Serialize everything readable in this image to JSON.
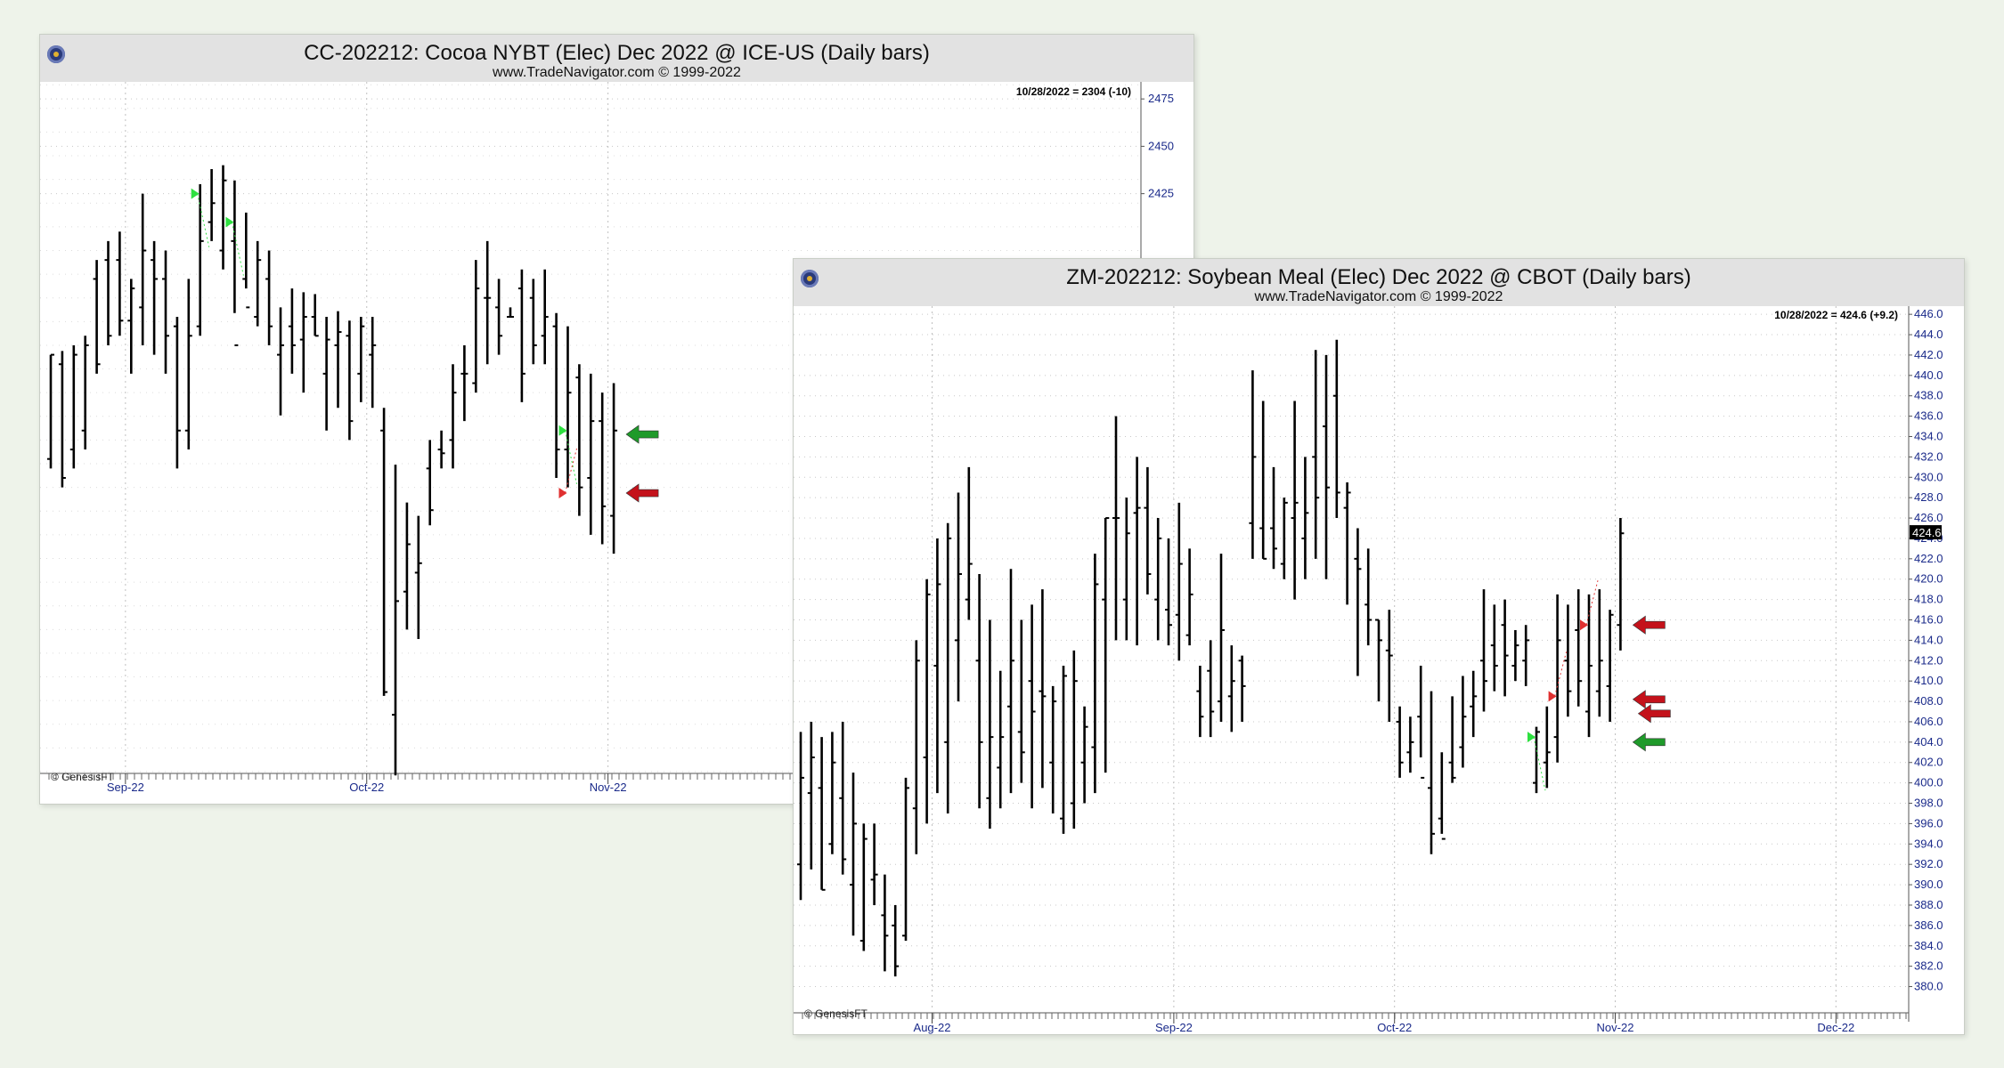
{
  "colors": {
    "background": "#eef3ea",
    "bar": "#000000",
    "axis_text": "#1a2a8a",
    "up_arrow": "#1f9a2a",
    "down_arrow": "#c4121b",
    "up_marker": "#2ee040",
    "down_marker": "#e03030"
  },
  "chart_data": [
    {
      "type": "bar",
      "title": "CC-202212:  Cocoa NYBT (Elec) Dec 2022 @ ICE-US  (Daily bars)",
      "subtitle": "www.TradeNavigator.com © 1999-2022",
      "readout": "10/28/2022 = 2304 (-10)",
      "credit": "© GenesisFT",
      "y_ticks": [
        "2475",
        "2450",
        "2425"
      ],
      "ylim": [
        2120,
        2484
      ],
      "x_ticks": [
        {
          "label": "Sep-22",
          "index": 7
        },
        {
          "label": "Oct-22",
          "index": 28
        },
        {
          "label": "Nov-22",
          "index": 49
        }
      ],
      "grid": true,
      "bars": [
        [
          2340,
          2280,
          2285,
          2340
        ],
        [
          2342,
          2270,
          2335,
          2275
        ],
        [
          2345,
          2280,
          2290,
          2340
        ],
        [
          2350,
          2290,
          2300,
          2345
        ],
        [
          2390,
          2330,
          2380,
          2335
        ],
        [
          2400,
          2345,
          2390,
          2350
        ],
        [
          2405,
          2350,
          2390,
          2358
        ],
        [
          2380,
          2330,
          2358,
          2375
        ],
        [
          2425,
          2345,
          2365,
          2395
        ],
        [
          2400,
          2340,
          2390,
          2380
        ],
        [
          2395,
          2330,
          2380,
          2350
        ],
        [
          2360,
          2280,
          2355,
          2300
        ],
        [
          2380,
          2290,
          2300,
          2350
        ],
        [
          2430,
          2350,
          2355,
          2400
        ],
        [
          2438,
          2400,
          2410,
          2420
        ],
        [
          2440,
          2385,
          2395,
          2432
        ],
        [
          2432,
          2362,
          2400,
          2345
        ],
        [
          2415,
          2375,
          2380,
          2365
        ],
        [
          2400,
          2355,
          2360,
          2390
        ],
        [
          2395,
          2345,
          2380,
          2355
        ],
        [
          2365,
          2308,
          2340,
          2345
        ],
        [
          2375,
          2330,
          2355,
          2345
        ],
        [
          2373,
          2320,
          2348,
          2360
        ],
        [
          2372,
          2350,
          2360,
          2350
        ],
        [
          2360,
          2300,
          2330,
          2348
        ],
        [
          2363,
          2312,
          2345,
          2352
        ],
        [
          2358,
          2295,
          2350,
          2305
        ],
        [
          2360,
          2315,
          2330,
          2355
        ],
        [
          2360,
          2312,
          2340,
          2345
        ],
        [
          2312,
          2160,
          2300,
          2162
        ],
        [
          2282,
          2118,
          2150,
          2210
        ],
        [
          2262,
          2195,
          2215,
          2240
        ],
        [
          2255,
          2190,
          2225,
          2230
        ],
        [
          2295,
          2250,
          2280,
          2258
        ],
        [
          2300,
          2280,
          2290,
          2288
        ],
        [
          2335,
          2280,
          2295,
          2320
        ],
        [
          2345,
          2305,
          2330,
          2330
        ],
        [
          2390,
          2320,
          2325,
          2375
        ],
        [
          2400,
          2335,
          2370,
          2370
        ],
        [
          2380,
          2340,
          2365,
          2350
        ],
        [
          2365,
          2360,
          2360,
          2360
        ],
        [
          2385,
          2315,
          2375,
          2330
        ],
        [
          2380,
          2335,
          2370,
          2345
        ],
        [
          2385,
          2335,
          2350,
          2360
        ],
        [
          2362,
          2275,
          2355,
          2290
        ],
        [
          2355,
          2270,
          2290,
          2320
        ],
        [
          2335,
          2255,
          2328,
          2270
        ],
        [
          2330,
          2245,
          2275,
          2305
        ],
        [
          2320,
          2240,
          2305,
          2260
        ],
        [
          2325,
          2235,
          2255,
          2300
        ]
      ],
      "markers": [
        {
          "kind": "buy",
          "price": 2425,
          "index": 13
        },
        {
          "kind": "buy",
          "price": 2410,
          "index": 16
        },
        {
          "kind": "buy",
          "price": 2300,
          "index": 45
        },
        {
          "kind": "sell",
          "price": 2267,
          "index": 45
        }
      ],
      "arrows": [
        {
          "kind": "buy",
          "price": 2298
        },
        {
          "kind": "sell",
          "price": 2267
        }
      ]
    },
    {
      "type": "bar",
      "title": "ZM-202212:  Soybean Meal (Elec) Dec 2022 @ CBOT  (Daily bars)",
      "subtitle": "www.TradeNavigator.com © 1999-2022",
      "readout": "10/28/2022 = 424.6 (+9.2)",
      "credit": "© GenesisFT",
      "last_value": "424.6",
      "y_ticks": [
        "446.0",
        "444.0",
        "442.0",
        "440.0",
        "438.0",
        "436.0",
        "434.0",
        "432.0",
        "430.0",
        "428.0",
        "426.0",
        "424.0",
        "422.0",
        "420.0",
        "418.0",
        "416.0",
        "414.0",
        "412.0",
        "410.0",
        "408.0",
        "406.0",
        "404.0",
        "402.0",
        "400.0",
        "398.0",
        "396.0",
        "394.0",
        "392.0",
        "390.0",
        "388.0",
        "386.0",
        "384.0",
        "382.0",
        "380.0"
      ],
      "ylim": [
        377.6,
        446.8
      ],
      "x_ticks": [
        {
          "label": "Aug-22",
          "index": 13
        },
        {
          "label": "Sep-22",
          "index": 36
        },
        {
          "label": "Oct-22",
          "index": 57
        },
        {
          "label": "Nov-22",
          "index": 78
        },
        {
          "label": "Dec-22",
          "index": 99
        }
      ],
      "grid": true,
      "bars": [
        [
          405.0,
          388.5,
          392.0,
          400.5
        ],
        [
          406.0,
          391.5,
          399.0,
          402.5
        ],
        [
          404.5,
          389.5,
          399.5,
          389.5
        ],
        [
          405.0,
          393.0,
          394.0,
          402.0
        ],
        [
          406.0,
          391.0,
          398.5,
          392.5
        ],
        [
          401.0,
          385.0,
          390.0,
          396.0
        ],
        [
          396.0,
          383.5,
          384.5,
          394.5
        ],
        [
          396.0,
          388.0,
          390.5,
          391.0
        ],
        [
          391.0,
          381.5,
          387.0,
          385.0
        ],
        [
          388.0,
          381.0,
          386.0,
          382.0
        ],
        [
          400.5,
          384.5,
          385.0,
          399.5
        ],
        [
          414.0,
          393.0,
          397.5,
          412.0
        ],
        [
          420.0,
          396.0,
          402.5,
          418.5
        ],
        [
          424.0,
          399.0,
          411.5,
          419.5
        ],
        [
          425.5,
          397.0,
          404.0,
          424.0
        ],
        [
          428.5,
          408.0,
          414.0,
          420.5
        ],
        [
          431.0,
          416.0,
          418.0,
          421.5
        ],
        [
          420.5,
          397.5,
          412.0,
          404.0
        ],
        [
          416.0,
          395.5,
          398.5,
          404.5
        ],
        [
          411.0,
          397.5,
          401.5,
          404.5
        ],
        [
          421.0,
          399.0,
          407.5,
          412.0
        ],
        [
          416.0,
          400.0,
          405.0,
          403.0
        ],
        [
          417.5,
          397.5,
          410.0,
          407.0
        ],
        [
          419.0,
          399.5,
          409.0,
          408.5
        ],
        [
          409.5,
          397.0,
          402.0,
          408.0
        ],
        [
          411.5,
          395.0,
          396.5,
          410.5
        ],
        [
          413.0,
          395.5,
          398.0,
          410.0
        ],
        [
          407.5,
          398.0,
          402.0,
          405.5
        ],
        [
          422.5,
          399.0,
          403.5,
          419.5
        ],
        [
          426.0,
          401.0,
          418.0,
          426.0
        ],
        [
          436.0,
          414.0,
          426.0,
          426.0
        ],
        [
          428.0,
          414.0,
          418.0,
          424.5
        ],
        [
          432.0,
          413.5,
          426.5,
          427.0
        ],
        [
          431.0,
          418.5,
          427.0,
          420.5
        ],
        [
          426.0,
          414.0,
          418.0,
          424.0
        ],
        [
          424.0,
          413.5,
          417.0,
          415.5
        ],
        [
          427.5,
          412.0,
          416.5,
          421.5
        ],
        [
          423.0,
          413.5,
          414.5,
          418.5
        ],
        [
          411.5,
          404.5,
          409.0,
          406.5
        ],
        [
          414.0,
          404.5,
          411.0,
          407.0
        ],
        [
          422.5,
          406.0,
          408.0,
          415.0
        ],
        [
          413.5,
          405.0,
          408.5,
          410.0
        ],
        [
          412.5,
          406.0,
          412.0,
          409.5
        ],
        [
          440.5,
          422.0,
          425.5,
          432.0
        ],
        [
          437.5,
          422.0,
          425.0,
          422.0
        ],
        [
          431.0,
          421.0,
          425.0,
          423.0
        ],
        [
          428.0,
          420.0,
          421.5,
          427.5
        ],
        [
          437.5,
          418.0,
          426.0,
          427.5
        ],
        [
          432.0,
          420.0,
          424.0,
          426.5
        ],
        [
          442.5,
          422.0,
          432.0,
          428.0
        ],
        [
          442.0,
          420.0,
          435.0,
          429.0
        ],
        [
          443.5,
          426.0,
          438.0,
          428.5
        ],
        [
          429.5,
          417.5,
          427.0,
          428.5
        ],
        [
          425.0,
          410.5,
          422.0,
          421.0
        ],
        [
          423.0,
          413.5,
          417.5,
          416.0
        ],
        [
          416.0,
          408.0,
          416.0,
          414.0
        ],
        [
          417.0,
          406.0,
          413.0,
          412.5
        ],
        [
          407.5,
          400.5,
          406.0,
          402.0
        ],
        [
          406.5,
          401.0,
          403.0,
          404.0
        ],
        [
          411.5,
          402.5,
          406.5,
          400.5
        ],
        [
          409.0,
          393.0,
          399.5,
          395.0
        ],
        [
          403.0,
          395.0,
          396.5,
          394.5
        ],
        [
          408.5,
          400.0,
          402.0,
          400.5
        ],
        [
          410.5,
          401.5,
          403.5,
          406.5
        ],
        [
          411.0,
          404.5,
          407.5,
          408.5
        ],
        [
          419.0,
          407.0,
          412.0,
          410.0
        ],
        [
          417.5,
          409.0,
          413.5,
          411.5
        ],
        [
          418.0,
          408.5,
          415.5,
          412.5
        ],
        [
          415.0,
          410.0,
          411.5,
          413.5
        ],
        [
          415.5,
          409.5,
          412.0,
          414.0
        ],
        [
          405.5,
          399.0,
          400.0,
          405.0
        ],
        [
          407.5,
          399.5,
          402.0,
          403.0
        ],
        [
          418.5,
          402.0,
          404.5,
          414.0
        ],
        [
          417.5,
          406.5,
          412.0,
          409.0
        ],
        [
          419.0,
          407.5,
          415.0,
          410.0
        ],
        [
          418.5,
          404.5,
          407.0,
          411.5
        ],
        [
          419.0,
          406.5,
          409.0,
          412.0
        ],
        [
          417.0,
          406.0,
          409.5,
          416.5
        ],
        [
          426.0,
          413.0,
          415.5,
          424.5
        ]
      ],
      "markers": [
        {
          "kind": "buy",
          "price": 404.5,
          "index": 70
        },
        {
          "kind": "sell",
          "price": 408.5,
          "index": 72
        },
        {
          "kind": "sell",
          "price": 415.5,
          "index": 75
        }
      ],
      "arrows": [
        {
          "kind": "buy",
          "price": 404.0
        },
        {
          "kind": "sell",
          "price": 408.2
        },
        {
          "kind": "sell",
          "price": 406.8
        },
        {
          "kind": "sell",
          "price": 415.5
        }
      ]
    }
  ]
}
